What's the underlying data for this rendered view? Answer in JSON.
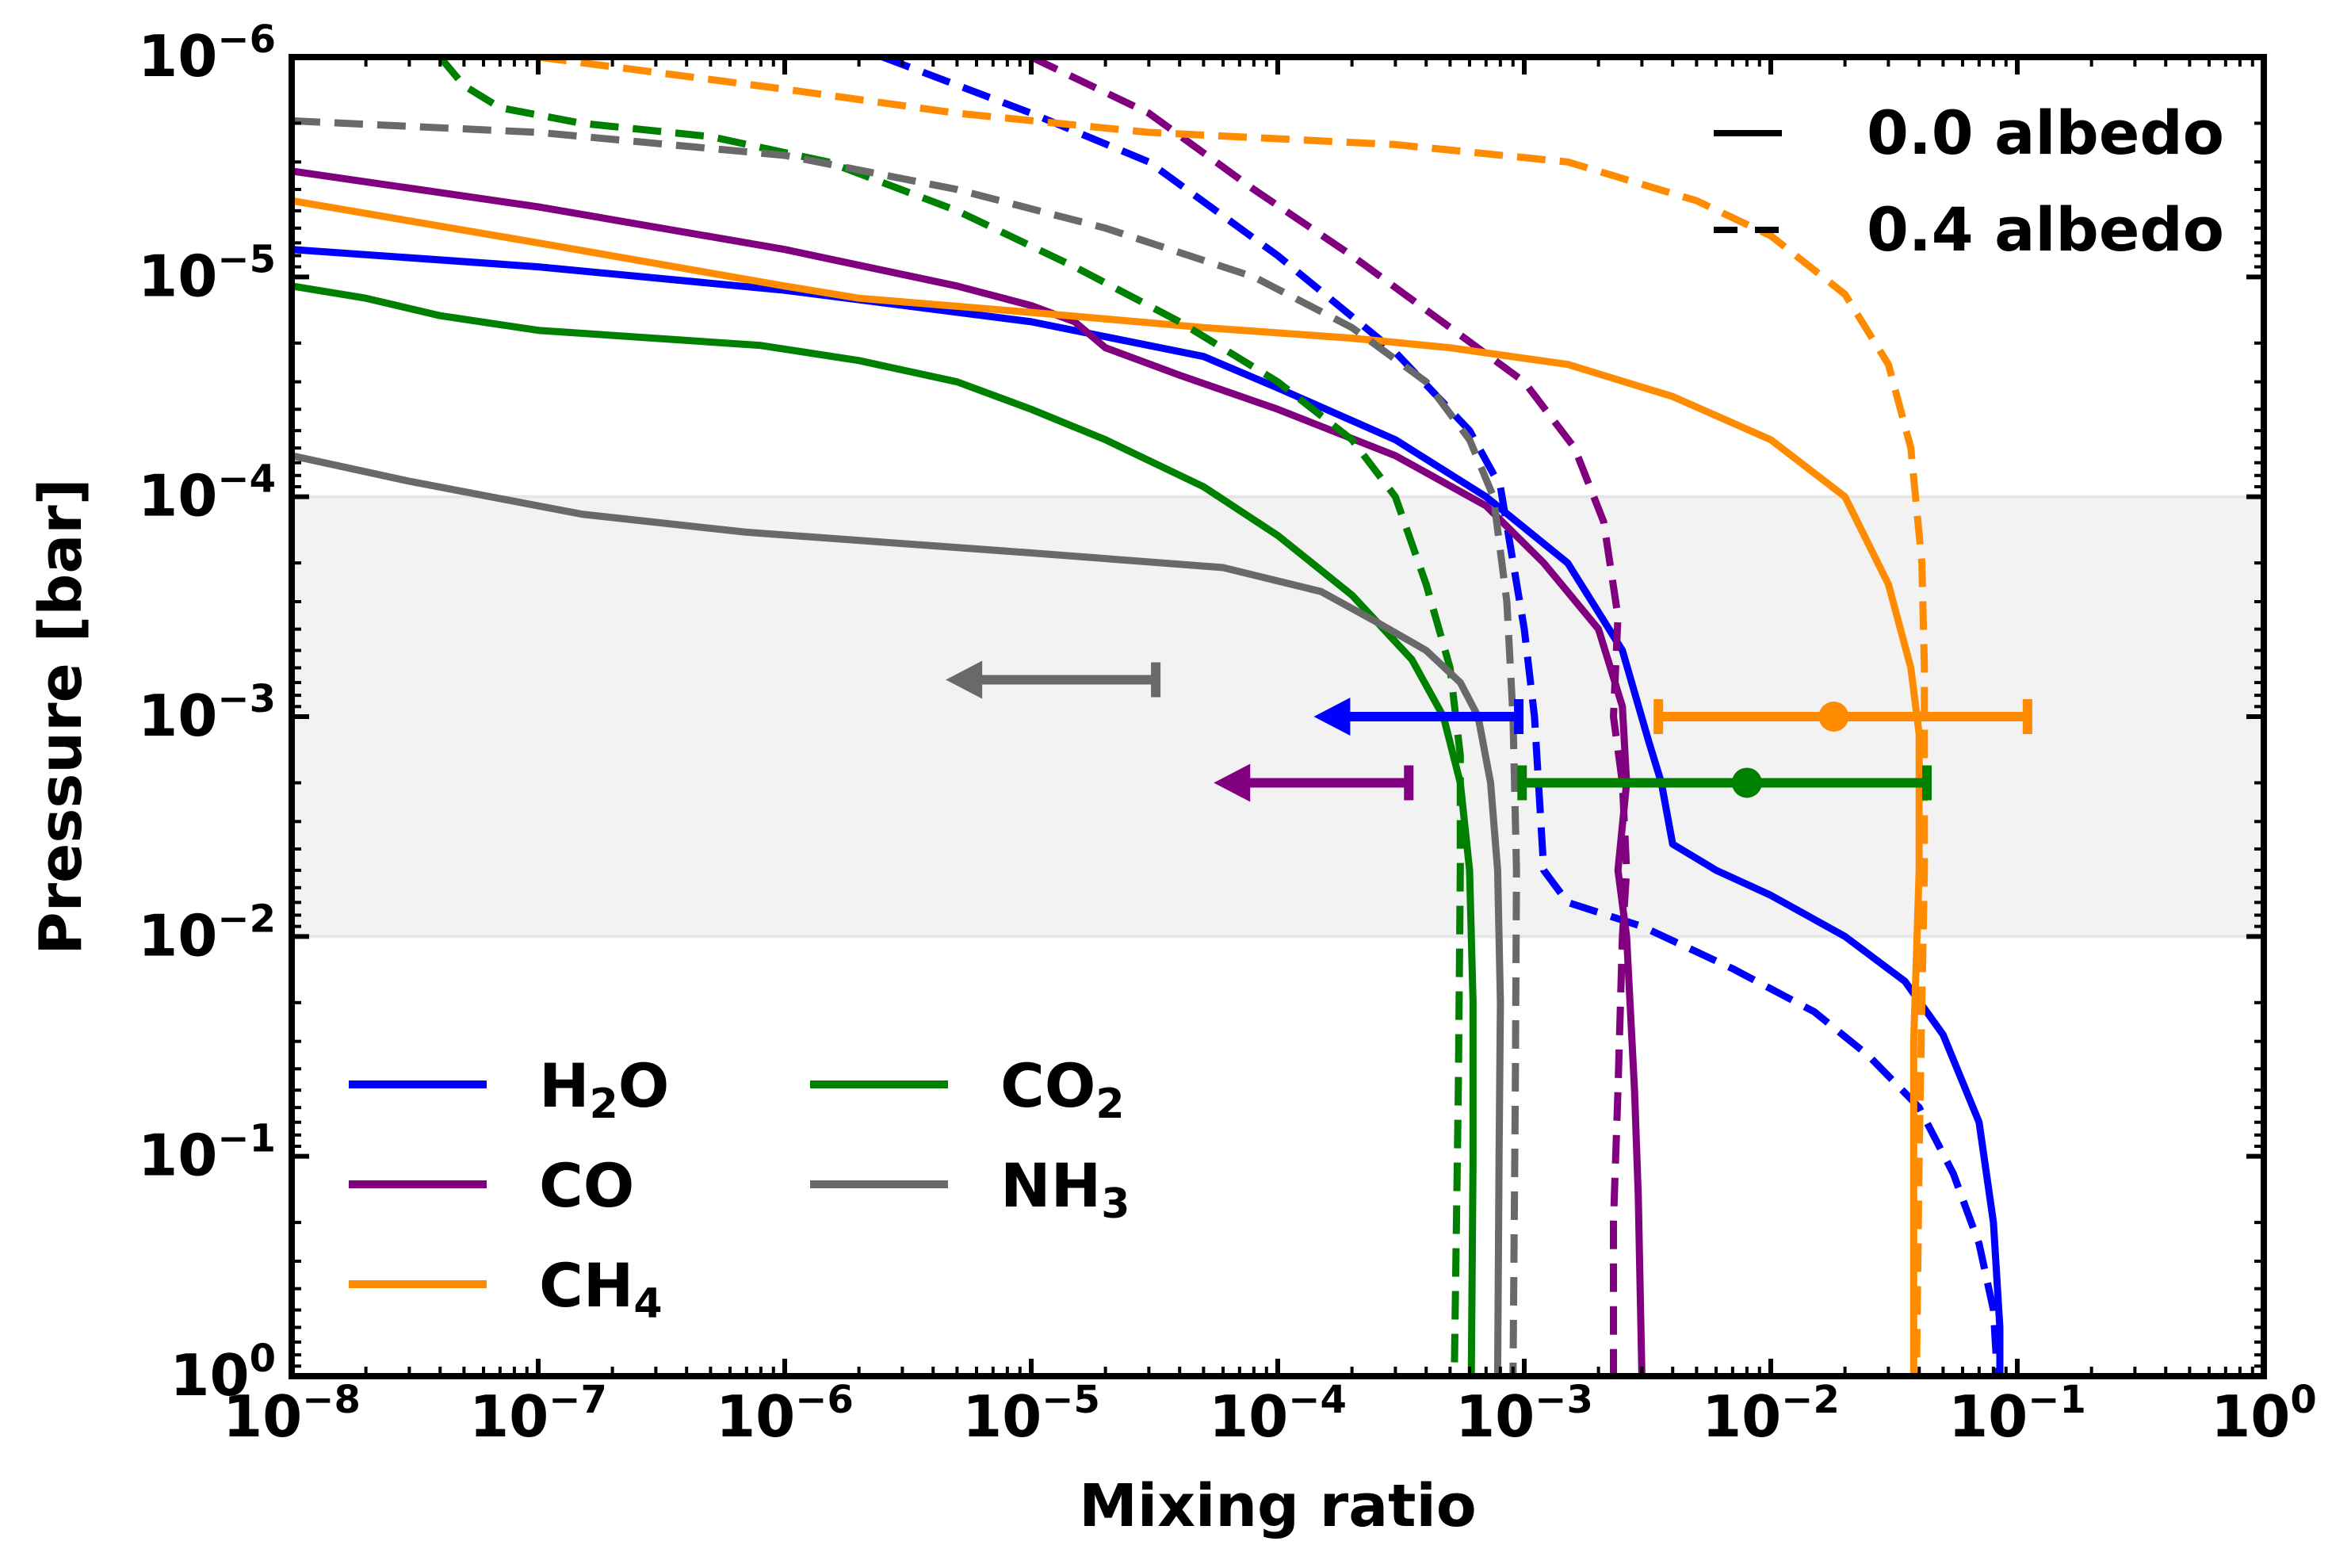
{
  "chart_data": {
    "type": "line",
    "xlabel": "Mixing ratio",
    "ylabel": "Pressure [bar]",
    "xscale": "log",
    "yscale": "log",
    "xlim": [
      1e-08,
      1
    ],
    "ylim": [
      1,
      1e-06
    ],
    "x_ticks": [
      {
        "value": 1e-08,
        "base": "10",
        "exp": "−8"
      },
      {
        "value": 1e-07,
        "base": "10",
        "exp": "−7"
      },
      {
        "value": 1e-06,
        "base": "10",
        "exp": "−6"
      },
      {
        "value": 1e-05,
        "base": "10",
        "exp": "−5"
      },
      {
        "value": 0.0001,
        "base": "10",
        "exp": "−4"
      },
      {
        "value": 0.001,
        "base": "10",
        "exp": "−3"
      },
      {
        "value": 0.01,
        "base": "10",
        "exp": "−2"
      },
      {
        "value": 0.1,
        "base": "10",
        "exp": "−1"
      },
      {
        "value": 1,
        "base": "10",
        "exp": "0"
      }
    ],
    "y_ticks": [
      {
        "value": 1e-06,
        "base": "10",
        "exp": "−6"
      },
      {
        "value": 1e-05,
        "base": "10",
        "exp": "−5"
      },
      {
        "value": 0.0001,
        "base": "10",
        "exp": "−4"
      },
      {
        "value": 0.001,
        "base": "10",
        "exp": "−3"
      },
      {
        "value": 0.01,
        "base": "10",
        "exp": "−2"
      },
      {
        "value": 0.1,
        "base": "10",
        "exp": "−1"
      },
      {
        "value": 1,
        "base": "10",
        "exp": "0"
      }
    ],
    "shaded_region": {
      "p_top": 0.0001,
      "p_bottom": 0.01,
      "color": "#f2f2f2"
    },
    "style_legend": [
      {
        "label": "0.0 albedo",
        "style": "solid"
      },
      {
        "label": "0.4 albedo",
        "style": "dashed"
      }
    ],
    "species_legend": [
      {
        "id": "H2O",
        "main": "H",
        "sub": "2",
        "tail": "O",
        "color": "#0000ff"
      },
      {
        "id": "CO",
        "main": "CO",
        "sub": "",
        "tail": "",
        "color": "#800080"
      },
      {
        "id": "CH4",
        "main": "CH",
        "sub": "4",
        "tail": "",
        "color": "#ff8c00"
      },
      {
        "id": "CO2",
        "main": "CO",
        "sub": "2",
        "tail": "",
        "color": "#008000"
      },
      {
        "id": "NH3",
        "main": "NH",
        "sub": "3",
        "tail": "",
        "color": "#696969"
      }
    ],
    "series": [
      {
        "name": "H2O 0.0 albedo",
        "color": "#0000ff",
        "style": "solid",
        "points": [
          [
            1e-08,
            7.5e-06
          ],
          [
            1e-07,
            9e-06
          ],
          [
            1e-06,
            1.15e-05
          ],
          [
            1e-05,
            1.6e-05
          ],
          [
            5e-05,
            2.3e-05
          ],
          [
            0.0001,
            3.2e-05
          ],
          [
            0.0003,
            5.5e-05
          ],
          [
            0.0007,
            0.0001
          ],
          [
            0.0015,
            0.0002
          ],
          [
            0.0025,
            0.0005
          ],
          [
            0.0032,
            0.0013
          ],
          [
            0.0036,
            0.002
          ],
          [
            0.004,
            0.0038
          ],
          [
            0.006,
            0.005
          ],
          [
            0.01,
            0.0065
          ],
          [
            0.02,
            0.01
          ],
          [
            0.035,
            0.016
          ],
          [
            0.05,
            0.028
          ],
          [
            0.07,
            0.07
          ],
          [
            0.08,
            0.2
          ],
          [
            0.085,
            0.6
          ],
          [
            0.085,
            1
          ]
        ]
      },
      {
        "name": "H2O 0.4 albedo",
        "color": "#0000ff",
        "style": "dashed",
        "points": [
          [
            2.5e-06,
            1e-06
          ],
          [
            1e-05,
            1.8e-06
          ],
          [
            3e-05,
            3e-06
          ],
          [
            0.0001,
            8e-06
          ],
          [
            0.0003,
            2.2e-05
          ],
          [
            0.0006,
            5e-05
          ],
          [
            0.0008,
            9e-05
          ],
          [
            0.001,
            0.0004
          ],
          [
            0.0011,
            0.001
          ],
          [
            0.0012,
            0.005
          ],
          [
            0.0015,
            0.007
          ],
          [
            0.003,
            0.009
          ],
          [
            0.007,
            0.014
          ],
          [
            0.015,
            0.022
          ],
          [
            0.025,
            0.035
          ],
          [
            0.04,
            0.06
          ],
          [
            0.055,
            0.12
          ],
          [
            0.07,
            0.25
          ],
          [
            0.08,
            0.5
          ],
          [
            0.083,
            1
          ]
        ]
      },
      {
        "name": "CO 0.0 albedo",
        "color": "#800080",
        "style": "solid",
        "points": [
          [
            1e-08,
            3.3e-06
          ],
          [
            1e-07,
            4.8e-06
          ],
          [
            1e-06,
            7.5e-06
          ],
          [
            5e-06,
            1.1e-05
          ],
          [
            1e-05,
            1.35e-05
          ],
          [
            1.5e-05,
            1.6e-05
          ],
          [
            2e-05,
            2.1e-05
          ],
          [
            4e-05,
            2.8e-05
          ],
          [
            0.0001,
            4e-05
          ],
          [
            0.0003,
            6.5e-05
          ],
          [
            0.0007,
            0.00011
          ],
          [
            0.0012,
            0.0002
          ],
          [
            0.002,
            0.0004
          ],
          [
            0.0025,
            0.0009
          ],
          [
            0.0026,
            0.002
          ],
          [
            0.0024,
            0.005
          ],
          [
            0.0026,
            0.01
          ],
          [
            0.0028,
            0.05
          ],
          [
            0.0029,
            0.15
          ],
          [
            0.003,
            1
          ]
        ]
      },
      {
        "name": "CO 0.4 albedo",
        "color": "#800080",
        "style": "dashed",
        "points": [
          [
            1e-05,
            1e-06
          ],
          [
            3e-05,
            1.8e-06
          ],
          [
            8e-05,
            4e-06
          ],
          [
            0.0002,
            8e-06
          ],
          [
            0.0005,
            1.7e-05
          ],
          [
            0.001,
            3e-05
          ],
          [
            0.0016,
            6e-05
          ],
          [
            0.0021,
            0.00013
          ],
          [
            0.0024,
            0.00035
          ],
          [
            0.0023,
            0.001
          ],
          [
            0.0025,
            0.002
          ],
          [
            0.0026,
            0.005
          ],
          [
            0.0025,
            0.01
          ],
          [
            0.0024,
            0.05
          ],
          [
            0.0023,
            0.2
          ],
          [
            0.0023,
            1
          ]
        ]
      },
      {
        "name": "CH4 0.0 albedo",
        "color": "#ff8c00",
        "style": "solid",
        "points": [
          [
            1e-08,
            4.5e-06
          ],
          [
            1e-07,
            7e-06
          ],
          [
            1e-06,
            1.1e-05
          ],
          [
            2e-06,
            1.25e-05
          ],
          [
            1e-05,
            1.45e-05
          ],
          [
            5e-05,
            1.7e-05
          ],
          [
            0.0002,
            1.9e-05
          ],
          [
            0.0005,
            2.1e-05
          ],
          [
            0.0015,
            2.5e-05
          ],
          [
            0.004,
            3.5e-05
          ],
          [
            0.01,
            5.5e-05
          ],
          [
            0.02,
            0.0001
          ],
          [
            0.03,
            0.00025
          ],
          [
            0.037,
            0.0006
          ],
          [
            0.04,
            0.0012
          ],
          [
            0.04,
            0.005
          ],
          [
            0.038,
            0.03
          ],
          [
            0.038,
            1
          ]
        ]
      },
      {
        "name": "CH4 0.4 albedo",
        "color": "#ff8c00",
        "style": "dashed",
        "points": [
          [
            1e-07,
            1e-06
          ],
          [
            1e-06,
            1.4e-06
          ],
          [
            5e-06,
            1.8e-06
          ],
          [
            3e-05,
            2.2e-06
          ],
          [
            0.0003,
            2.5e-06
          ],
          [
            0.0015,
            3e-06
          ],
          [
            0.005,
            4.5e-06
          ],
          [
            0.01,
            6.5e-06
          ],
          [
            0.02,
            1.2e-05
          ],
          [
            0.03,
            2.5e-05
          ],
          [
            0.037,
            6e-05
          ],
          [
            0.041,
            0.0002
          ],
          [
            0.042,
            0.0006
          ],
          [
            0.042,
            0.005
          ],
          [
            0.041,
            0.02
          ],
          [
            0.04,
            0.1
          ],
          [
            0.039,
            1
          ]
        ]
      },
      {
        "name": "CO2 0.0 albedo",
        "color": "#008000",
        "style": "solid",
        "points": [
          [
            1e-08,
            1.1e-05
          ],
          [
            2e-08,
            1.25e-05
          ],
          [
            4e-08,
            1.5e-05
          ],
          [
            1e-07,
            1.75e-05
          ],
          [
            8e-07,
            2.05e-05
          ],
          [
            2e-06,
            2.4e-05
          ],
          [
            5e-06,
            3e-05
          ],
          [
            1e-05,
            4e-05
          ],
          [
            2e-05,
            5.5e-05
          ],
          [
            5e-05,
            9e-05
          ],
          [
            0.0001,
            0.00015
          ],
          [
            0.0002,
            0.00028
          ],
          [
            0.00035,
            0.00055
          ],
          [
            0.00047,
            0.001
          ],
          [
            0.00055,
            0.002
          ],
          [
            0.0006,
            0.005
          ],
          [
            0.00062,
            0.02
          ],
          [
            0.00062,
            0.1
          ],
          [
            0.00061,
            1
          ]
        ]
      },
      {
        "name": "CO2 0.4 albedo",
        "color": "#008000",
        "style": "dashed",
        "points": [
          [
            4e-08,
            1e-06
          ],
          [
            5e-08,
            1.35e-06
          ],
          [
            7e-08,
            1.7e-06
          ],
          [
            1.5e-07,
            2e-06
          ],
          [
            5e-07,
            2.3e-06
          ],
          [
            1.5e-06,
            3e-06
          ],
          [
            5e-06,
            5e-06
          ],
          [
            1.5e-05,
            9e-06
          ],
          [
            4e-05,
            1.6e-05
          ],
          [
            0.0001,
            3e-05
          ],
          [
            0.0002,
            5.5e-05
          ],
          [
            0.0003,
            0.0001
          ],
          [
            0.0004,
            0.00025
          ],
          [
            0.0005,
            0.0006
          ],
          [
            0.00055,
            0.0015
          ],
          [
            0.00055,
            0.005
          ],
          [
            0.00054,
            0.05
          ],
          [
            0.00052,
            1
          ]
        ]
      },
      {
        "name": "NH3 0.0 albedo",
        "color": "#696969",
        "style": "solid",
        "points": [
          [
            1e-08,
            6.5e-05
          ],
          [
            3e-08,
            8.5e-05
          ],
          [
            1.5e-07,
            0.00012
          ],
          [
            7e-07,
            0.000145
          ],
          [
            1e-05,
            0.00018
          ],
          [
            6e-05,
            0.00021
          ],
          [
            0.00015,
            0.00027
          ],
          [
            0.00025,
            0.00037
          ],
          [
            0.0004,
            0.0005
          ],
          [
            0.00055,
            0.0007
          ],
          [
            0.00065,
            0.001
          ],
          [
            0.00073,
            0.002
          ],
          [
            0.00078,
            0.005
          ],
          [
            0.0008,
            0.02
          ],
          [
            0.00079,
            0.1
          ],
          [
            0.00078,
            1
          ]
        ]
      },
      {
        "name": "NH3 0.4 albedo",
        "color": "#696969",
        "style": "dashed",
        "points": [
          [
            1e-08,
            1.95e-06
          ],
          [
            1e-07,
            2.2e-06
          ],
          [
            1e-06,
            2.8e-06
          ],
          [
            5e-06,
            4e-06
          ],
          [
            2e-05,
            6e-06
          ],
          [
            8e-05,
            1e-05
          ],
          [
            0.0002,
            1.7e-05
          ],
          [
            0.0004,
            3e-05
          ],
          [
            0.0006,
            5.5e-05
          ],
          [
            0.00075,
            0.0001
          ],
          [
            0.00085,
            0.0003
          ],
          [
            0.0009,
            0.001
          ],
          [
            0.00093,
            0.005
          ],
          [
            0.00092,
            0.05
          ],
          [
            0.0009,
            1
          ]
        ]
      }
    ],
    "error_bars": [
      {
        "species": "H2O",
        "kind": "upper_limit",
        "color": "#0000ff",
        "pressure": 0.001,
        "x_limit": 0.00095,
        "arrow_to": 0.00014
      },
      {
        "species": "CO",
        "kind": "upper_limit",
        "color": "#800080",
        "pressure": 0.002,
        "x_limit": 0.00034,
        "arrow_to": 5.5e-05
      },
      {
        "species": "NH3",
        "kind": "upper_limit",
        "color": "#696969",
        "pressure": 0.00068,
        "x_limit": 3.2e-05,
        "arrow_to": 4.5e-06
      },
      {
        "species": "CH4",
        "kind": "measurement",
        "color": "#ff8c00",
        "pressure": 0.001,
        "x": 0.018,
        "x_low": 0.0035,
        "x_high": 0.11
      },
      {
        "species": "CO2",
        "kind": "measurement",
        "color": "#008000",
        "pressure": 0.002,
        "x": 0.008,
        "x_low": 0.00098,
        "x_high": 0.043
      }
    ]
  }
}
